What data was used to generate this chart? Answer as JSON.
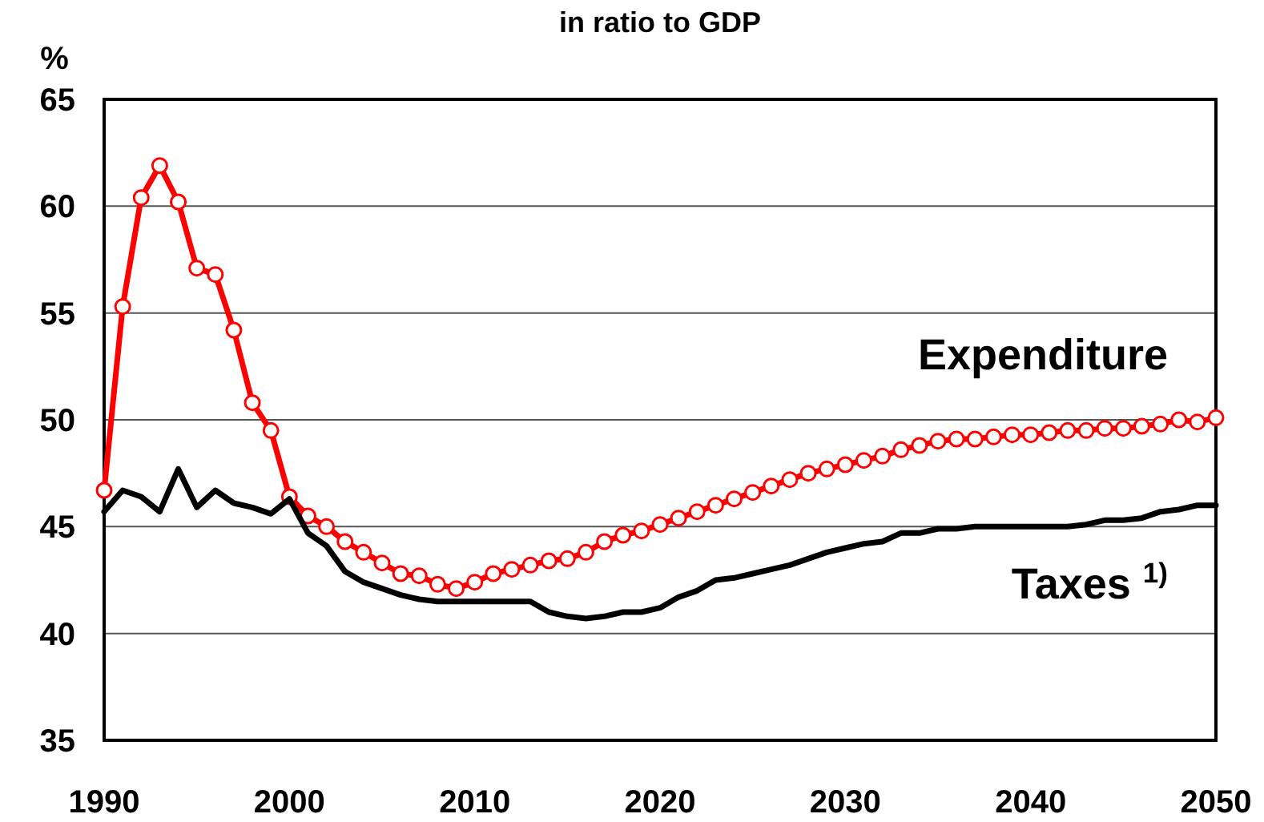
{
  "chart_data": {
    "type": "line",
    "title": "in ratio to GDP",
    "ylabel": "%",
    "x": [
      1990,
      1991,
      1992,
      1993,
      1994,
      1995,
      1996,
      1997,
      1998,
      1999,
      2000,
      2001,
      2002,
      2003,
      2004,
      2005,
      2006,
      2007,
      2008,
      2009,
      2010,
      2011,
      2012,
      2013,
      2014,
      2015,
      2016,
      2017,
      2018,
      2019,
      2020,
      2021,
      2022,
      2023,
      2024,
      2025,
      2026,
      2027,
      2028,
      2029,
      2030,
      2031,
      2032,
      2033,
      2034,
      2035,
      2036,
      2037,
      2038,
      2039,
      2040,
      2041,
      2042,
      2043,
      2044,
      2045,
      2046,
      2047,
      2048,
      2049,
      2050
    ],
    "series": [
      {
        "name": "Expenditure",
        "color": "#ff0000",
        "marker": "circle",
        "values": [
          46.7,
          55.3,
          60.4,
          61.9,
          60.2,
          57.1,
          56.8,
          54.2,
          50.8,
          49.5,
          46.4,
          45.5,
          45.0,
          44.3,
          43.8,
          43.3,
          42.8,
          42.7,
          42.3,
          42.1,
          42.4,
          42.8,
          43.0,
          43.2,
          43.4,
          43.5,
          43.8,
          44.3,
          44.6,
          44.8,
          45.1,
          45.4,
          45.7,
          46.0,
          46.3,
          46.6,
          46.9,
          47.2,
          47.5,
          47.7,
          47.9,
          48.1,
          48.3,
          48.6,
          48.8,
          49.0,
          49.1,
          49.1,
          49.2,
          49.3,
          49.3,
          49.4,
          49.5,
          49.5,
          49.6,
          49.6,
          49.7,
          49.8,
          50.0,
          49.9,
          50.1
        ]
      },
      {
        "name": "Taxes $^{1)}$",
        "color": "#000000",
        "marker": "none",
        "values": [
          45.7,
          46.7,
          46.4,
          45.7,
          47.7,
          45.9,
          46.7,
          46.1,
          45.9,
          45.6,
          46.3,
          44.7,
          44.1,
          42.9,
          42.4,
          42.1,
          41.8,
          41.6,
          41.5,
          41.5,
          41.5,
          41.5,
          41.5,
          41.5,
          41.0,
          40.8,
          40.7,
          40.8,
          41.0,
          41.0,
          41.2,
          41.7,
          42.0,
          42.5,
          42.6,
          42.8,
          43.0,
          43.2,
          43.5,
          43.8,
          44.0,
          44.2,
          44.3,
          44.7,
          44.7,
          44.9,
          44.9,
          45.0,
          45.0,
          45.0,
          45.0,
          45.0,
          45.0,
          45.1,
          45.3,
          45.3,
          45.4,
          45.7,
          45.8,
          46.0,
          46.0
        ]
      }
    ],
    "xlim": [
      1990,
      2050
    ],
    "xticks": [
      1990,
      2000,
      2010,
      2020,
      2030,
      2040,
      2050
    ],
    "ylim": [
      35,
      65
    ],
    "yticks": [
      35,
      40,
      45,
      50,
      55,
      60,
      65
    ],
    "grid": "y",
    "line_style": "solid"
  }
}
